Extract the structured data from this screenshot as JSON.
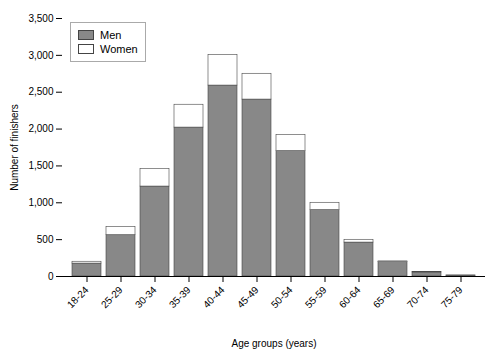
{
  "chart_data": {
    "type": "bar",
    "stacked": true,
    "categories": [
      "18-24",
      "25-29",
      "30-34",
      "35-39",
      "40-44",
      "45-49",
      "50-54",
      "55-59",
      "60-64",
      "65-69",
      "70-74",
      "75-79"
    ],
    "series": [
      {
        "name": "Men",
        "color": "#888888",
        "values": [
          175,
          560,
          1220,
          2020,
          2590,
          2400,
          1700,
          900,
          460,
          195,
          55,
          12
        ]
      },
      {
        "name": "Women",
        "color": "#ffffff",
        "values": [
          25,
          110,
          240,
          310,
          415,
          350,
          220,
          100,
          38,
          10,
          5,
          2
        ]
      }
    ],
    "xlabel": "Age groups (years)",
    "ylabel": "Number of finishers",
    "ylim": [
      0,
      3500
    ],
    "yticks": [
      0,
      500,
      1000,
      1500,
      2000,
      2500,
      3000,
      3500
    ],
    "legend": "upper left",
    "grid": false
  }
}
